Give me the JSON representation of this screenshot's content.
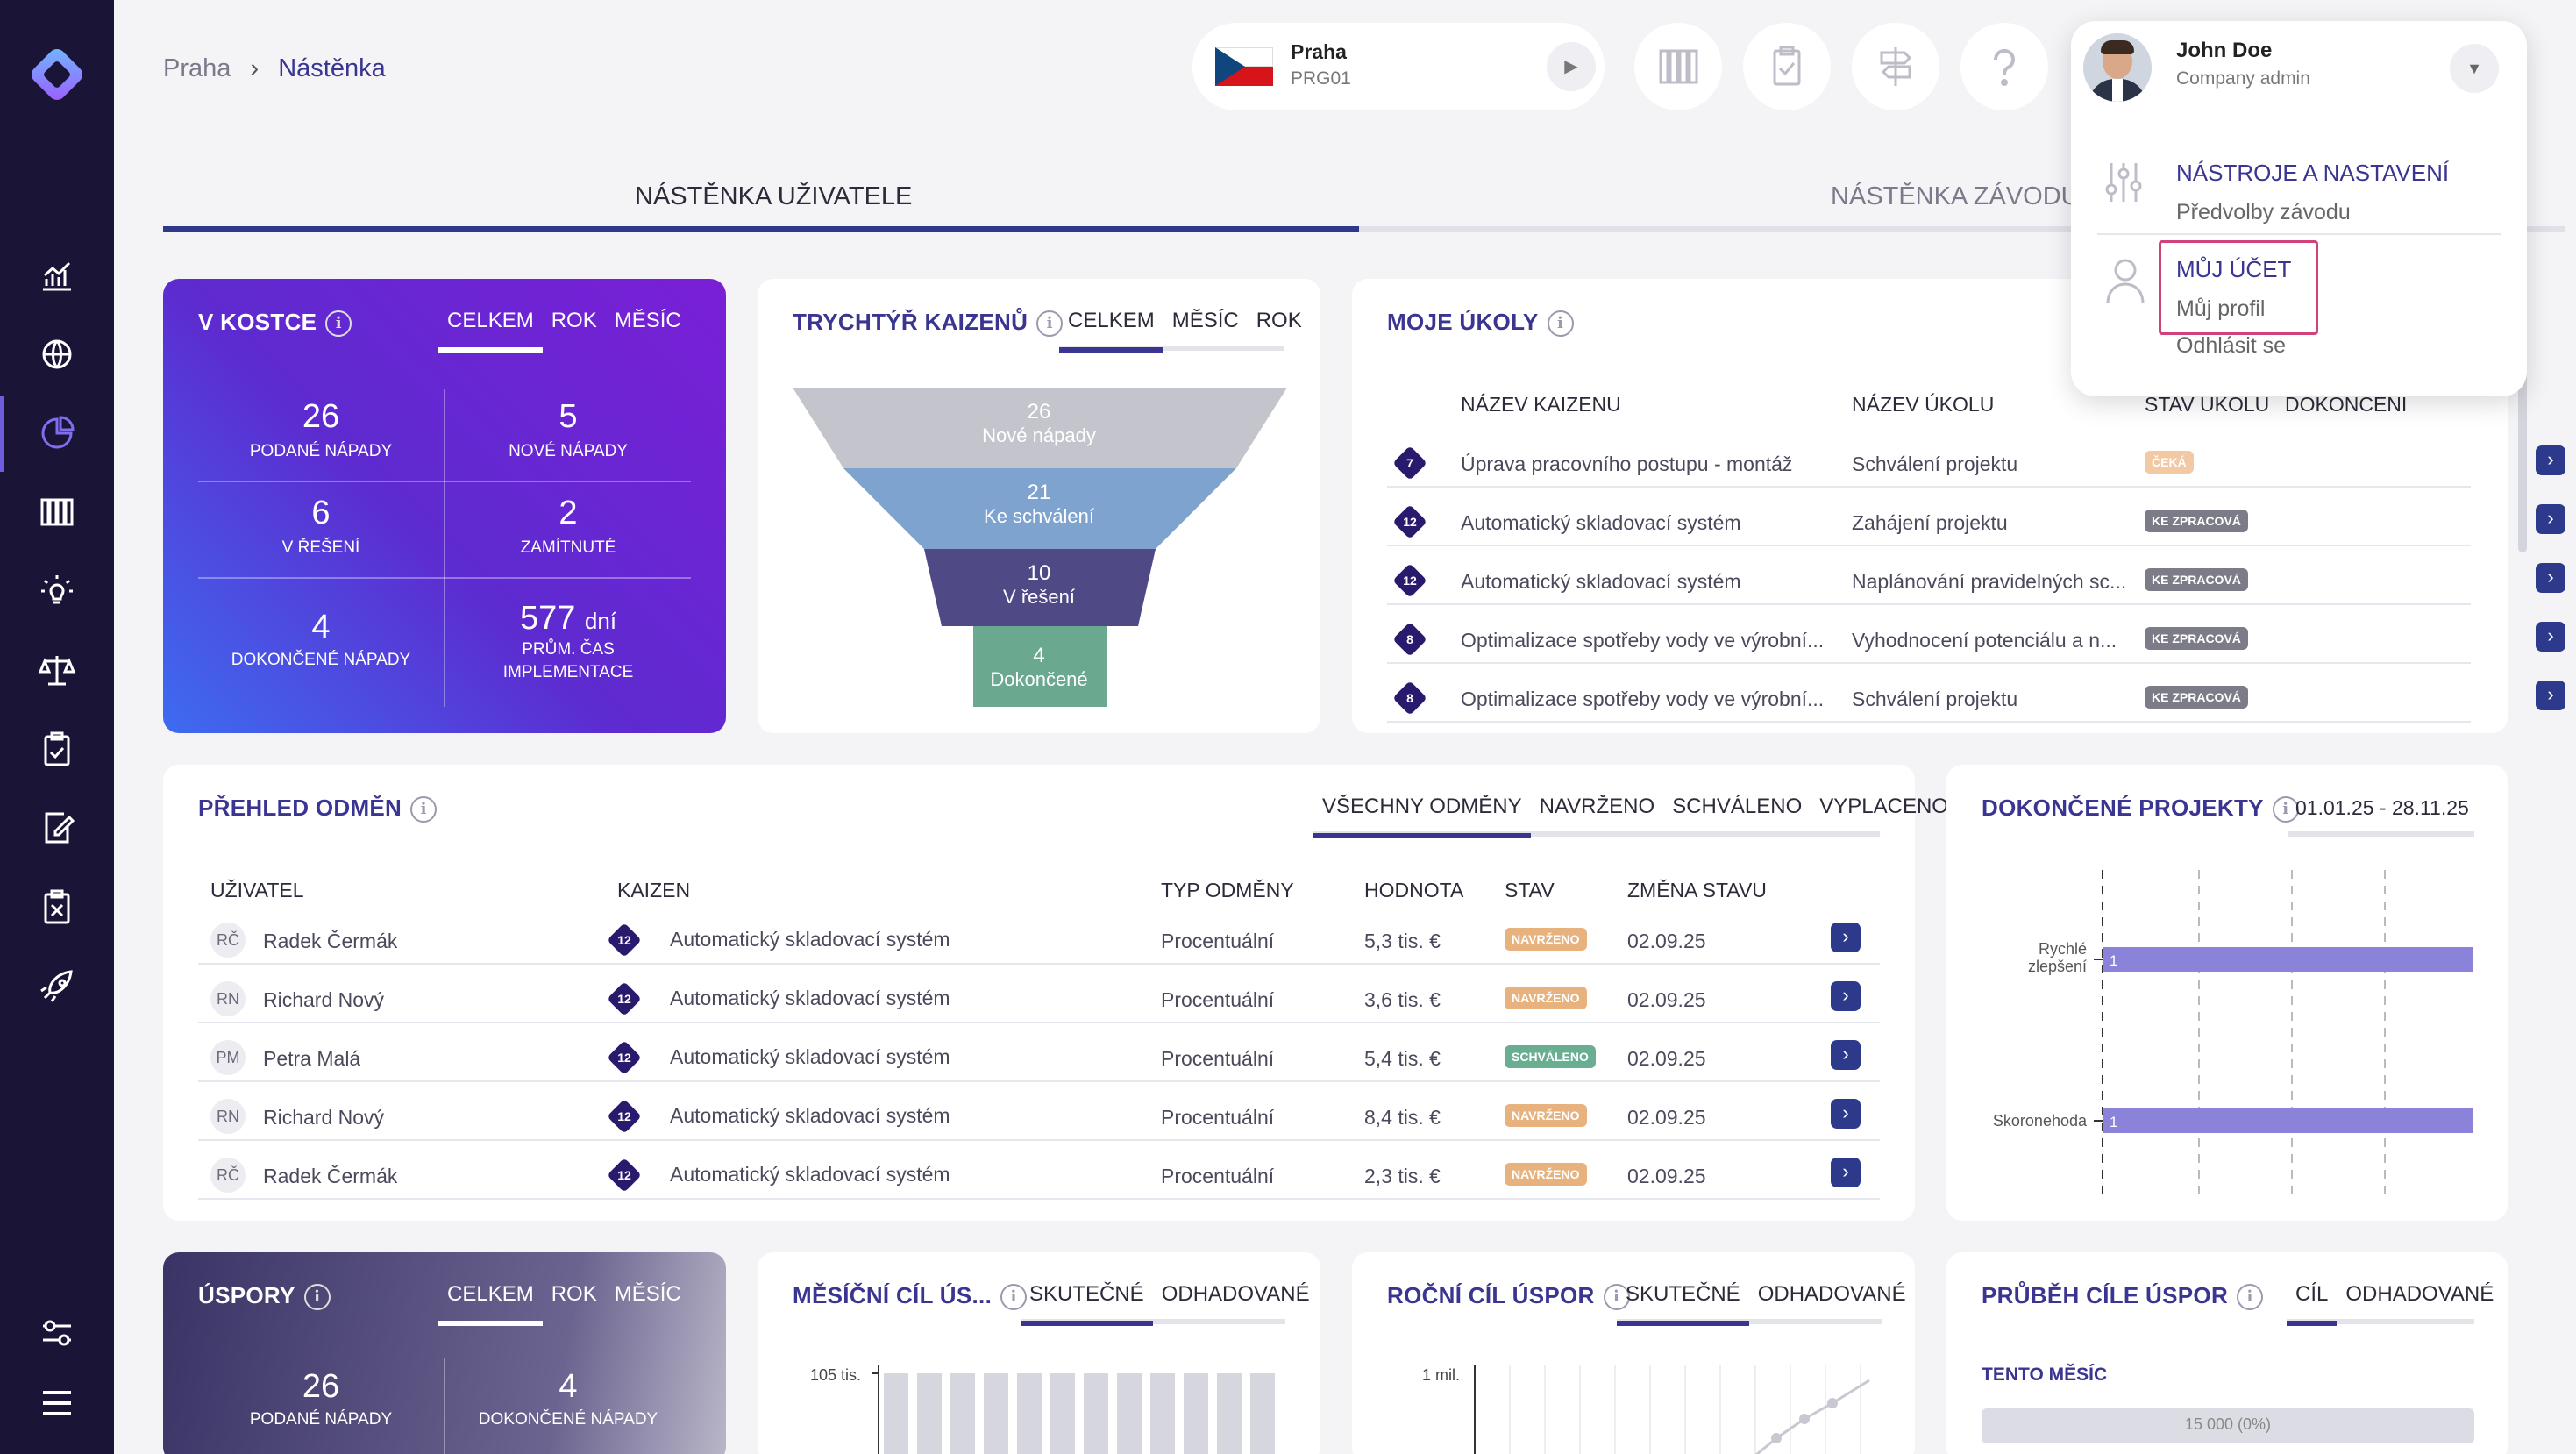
{
  "breadcrumb": {
    "root": "Praha",
    "current": "Nástěnka"
  },
  "plant": {
    "name": "Praha",
    "code": "PRG01"
  },
  "user": {
    "name": "John Doe",
    "role": "Company admin"
  },
  "menu": {
    "tools_title": "NÁSTROJE A NASTAVENÍ",
    "tools_sub": "Předvolby závodu",
    "account_title": "MŮJ ÚČET",
    "profile": "Můj profil",
    "logout": "Odhlásit se"
  },
  "main_tabs": {
    "user": "NÁSTĚNKA UŽIVATELE",
    "plant": "NÁSTĚNKA ZÁVODU"
  },
  "glance": {
    "title": "V KOSTCE",
    "tabs": [
      "CELKEM",
      "ROK",
      "MĚSÍC"
    ],
    "stats": [
      {
        "value": "26",
        "label": "PODANÉ NÁPADY"
      },
      {
        "value": "5",
        "label": "NOVÉ NÁPADY"
      },
      {
        "value": "6",
        "label": "V ŘEŠENÍ"
      },
      {
        "value": "2",
        "label": "ZAMÍTNUTÉ"
      },
      {
        "value": "4",
        "label": "DOKONČENÉ NÁPADY"
      }
    ],
    "avg_value": "577",
    "avg_unit": "dní",
    "avg_label1": "PRŮM. ČAS",
    "avg_label2": "IMPLEMENTACE"
  },
  "funnel": {
    "title": "TRYCHTÝŘ KAIZENŮ",
    "tabs": [
      "CELKEM",
      "MĚSÍC",
      "ROK"
    ],
    "stages": [
      {
        "value": "26",
        "label": "Nové nápady",
        "color": "#c4c4cc"
      },
      {
        "value": "21",
        "label": "Ke schválení",
        "color": "#7ea3cf"
      },
      {
        "value": "10",
        "label": "V řešení",
        "color": "#4f4a86"
      },
      {
        "value": "4",
        "label": "Dokončené",
        "color": "#6aa890"
      }
    ]
  },
  "tasks": {
    "title": "MOJE ÚKOLY",
    "headers": [
      "NÁZEV KAIZENU",
      "NÁZEV ÚKOLU",
      "STAV ÚKOLU",
      "DOKONČENÍ"
    ],
    "rows": [
      {
        "num": "7",
        "kaizen": "Úprava pracovního postupu - montáž",
        "task": "Schválení projektu",
        "status": "ČEKÁ",
        "status_color": "#f2c9a2"
      },
      {
        "num": "12",
        "kaizen": "Automatický skladovací systém",
        "task": "Zahájení projektu",
        "status": "KE ZPRACOVÁ",
        "status_color": "#7c7c88"
      },
      {
        "num": "12",
        "kaizen": "Automatický skladovací systém",
        "task": "Naplánování pravidelných sc...",
        "status": "KE ZPRACOVÁ",
        "status_color": "#7c7c88"
      },
      {
        "num": "8",
        "kaizen": "Optimalizace spotřeby vody ve výrobní...",
        "task": "Vyhodnocení potenciálu a n...",
        "status": "KE ZPRACOVÁ",
        "status_color": "#7c7c88"
      },
      {
        "num": "8",
        "kaizen": "Optimalizace spotřeby vody ve výrobní...",
        "task": "Schválení projektu",
        "status": "KE ZPRACOVÁ",
        "status_color": "#7c7c88"
      }
    ]
  },
  "rewards": {
    "title": "PŘEHLED ODMĚN",
    "tabs": [
      "VŠECHNY ODMĚNY",
      "NAVRŽENO",
      "SCHVÁLENO",
      "VYPLACENO"
    ],
    "headers": [
      "UŽIVATEL",
      "KAIZEN",
      "TYP ODMĚNY",
      "HODNOTA",
      "STAV",
      "ZMĚNA STAVU"
    ],
    "rows": [
      {
        "initials": "RČ",
        "user": "Radek Čermák",
        "num": "12",
        "kaizen": "Automatický skladovací systém",
        "type": "Procentuální",
        "value": "5,3 tis. €",
        "status": "NAVRŽENO",
        "status_color": "#e8b27e",
        "date": "02.09.25"
      },
      {
        "initials": "RN",
        "user": "Richard Nový",
        "num": "12",
        "kaizen": "Automatický skladovací systém",
        "type": "Procentuální",
        "value": "3,6 tis. €",
        "status": "NAVRŽENO",
        "status_color": "#e8b27e",
        "date": "02.09.25"
      },
      {
        "initials": "PM",
        "user": "Petra Malá",
        "num": "12",
        "kaizen": "Automatický skladovací systém",
        "type": "Procentuální",
        "value": "5,4 tis. €",
        "status": "SCHVÁLENO",
        "status_color": "#6aae92",
        "date": "02.09.25"
      },
      {
        "initials": "RN",
        "user": "Richard Nový",
        "num": "12",
        "kaizen": "Automatický skladovací systém",
        "type": "Procentuální",
        "value": "8,4 tis. €",
        "status": "NAVRŽENO",
        "status_color": "#e8b27e",
        "date": "02.09.25"
      },
      {
        "initials": "RČ",
        "user": "Radek Čermák",
        "num": "12",
        "kaizen": "Automatický skladovací systém",
        "type": "Procentuální",
        "value": "2,3 tis. €",
        "status": "NAVRŽENO",
        "status_color": "#e8b27e",
        "date": "02.09.25"
      }
    ]
  },
  "completed": {
    "title": "DOKONČENÉ PROJEKTY",
    "range": "01.01.25 - 28.11.25",
    "chart_data": {
      "type": "bar",
      "orientation": "horizontal",
      "categories": [
        "Rychlé zlepšení",
        "Skoronehoda"
      ],
      "values": [
        1,
        1
      ],
      "color": "#8b82da"
    }
  },
  "savings": {
    "title": "ÚSPORY",
    "tabs": [
      "CELKEM",
      "ROK",
      "MĚSÍC"
    ],
    "stats": [
      {
        "value": "26",
        "label": "PODANÉ NÁPADY"
      },
      {
        "value": "4",
        "label": "DOKONČENÉ NÁPADY"
      }
    ]
  },
  "monthly": {
    "title": "MĚSÍČNÍ CÍL ÚS...",
    "tabs": [
      "SKUTEČNÉ",
      "ODHADOVANÉ"
    ],
    "y_label": "105 tis.",
    "chart_data": {
      "type": "bar",
      "bars": 12,
      "ytick": "105 tis."
    }
  },
  "yearly": {
    "title": "ROČNÍ CÍL ÚSPOR",
    "tabs": [
      "SKUTEČNÉ",
      "ODHADOVANÉ"
    ],
    "y_label": "1 mil.",
    "chart_data": {
      "type": "line",
      "ytick": "1 mil."
    }
  },
  "progress": {
    "title": "PRŮBĚH CÍLE ÚSPOR",
    "tabs": [
      "CÍL",
      "ODHADOVANÉ"
    ],
    "subtitle": "TENTO MĚSÍC",
    "bar_label": "15 000 (0%)"
  }
}
